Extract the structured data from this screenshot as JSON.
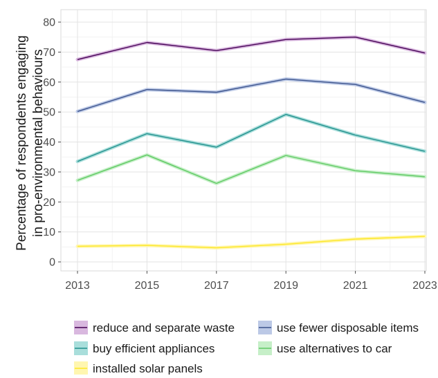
{
  "chart_data": {
    "type": "line",
    "title": "",
    "xlabel": "",
    "ylabel_lines": [
      "Percentage of respondents engaging",
      "in pro-environmental behaviours"
    ],
    "x": [
      2013,
      2015,
      2017,
      2019,
      2021,
      2023
    ],
    "x_ticks": [
      "2013",
      "2015",
      "2017",
      "2019",
      "2021",
      "2023"
    ],
    "y_ticks": [
      0,
      10,
      20,
      30,
      40,
      50,
      60,
      70,
      80
    ],
    "xlim": [
      2013,
      2023
    ],
    "ylim": [
      0,
      80
    ],
    "grid": true,
    "legend_position": "bottom",
    "series": [
      {
        "name": "reduce and separate waste",
        "color": "#440154",
        "band_color": "#d9b8df",
        "values": [
          67.5,
          73.2,
          70.5,
          74.2,
          75.0,
          69.7
        ]
      },
      {
        "name": "use fewer disposable items",
        "color": "#3b528b",
        "band_color": "#bcc9e6",
        "values": [
          50.2,
          57.5,
          56.6,
          61.0,
          59.2,
          53.2
        ]
      },
      {
        "name": "buy efficient appliances",
        "color": "#21908c",
        "band_color": "#a9dedb",
        "values": [
          33.5,
          42.8,
          38.3,
          49.2,
          42.3,
          36.9
        ]
      },
      {
        "name": "use alternatives to car",
        "color": "#5ec962",
        "band_color": "#c6efc8",
        "values": [
          27.2,
          35.7,
          26.2,
          35.5,
          30.4,
          28.4
        ]
      },
      {
        "name": "installed solar panels",
        "color": "#fde725",
        "band_color": "#fff6b0",
        "values": [
          5.2,
          5.5,
          4.7,
          5.9,
          7.6,
          8.5
        ]
      }
    ]
  }
}
